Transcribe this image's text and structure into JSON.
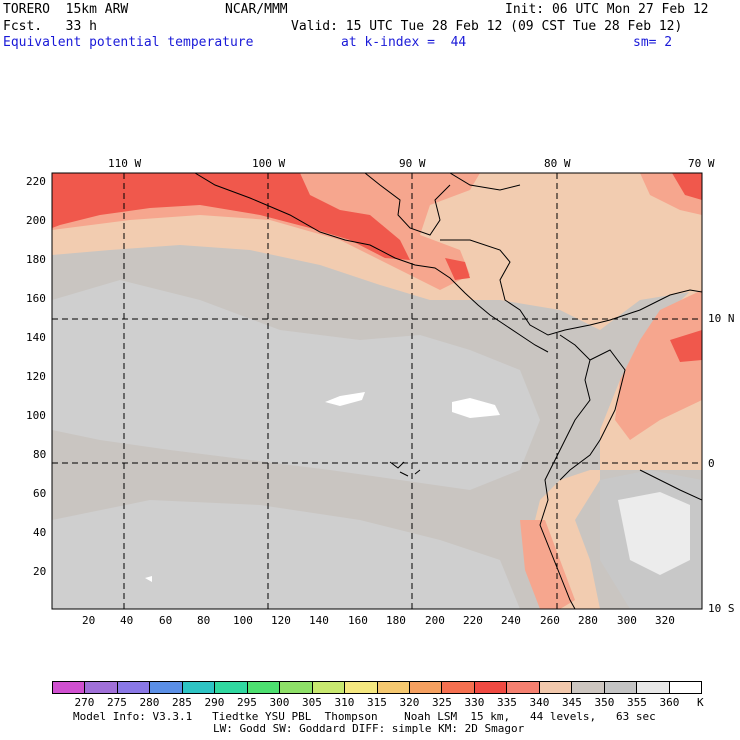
{
  "header": {
    "model": "TORERO  15km ARW",
    "org": "NCAR/MMM",
    "init": "Init: 06 UTC Mon 27 Feb 12",
    "fcst": "Fcst.   33 h",
    "valid": "Valid: 15 UTC Tue 28 Feb 12 (09 CST Tue 28 Feb 12)",
    "field": "Equivalent potential temperature",
    "level": "at k-index =  44",
    "smoothing": "sm= 2",
    "field_color": "#1a1ad8"
  },
  "map": {
    "longitude_labels": [
      "110 W",
      "100 W",
      "90 W",
      "80 W",
      "70 W"
    ],
    "latitude_labels": [
      "10 N",
      "0",
      "10 S"
    ],
    "grid_y_labels": [
      "220",
      "200",
      "180",
      "160",
      "140",
      "120",
      "100",
      "80",
      "60",
      "40",
      "20"
    ],
    "grid_x_labels": [
      "20",
      "40",
      "60",
      "80",
      "100",
      "120",
      "140",
      "160",
      "180",
      "200",
      "220",
      "240",
      "260",
      "280",
      "300",
      "320"
    ],
    "colors": {
      "background_field": "#c9c5c1",
      "cool_field": "#cfcfcf",
      "warm_field": "#f2ccb0",
      "hot_field": "#f6a68e",
      "hottest_field": "#f0584c",
      "coastline": "#000000"
    }
  },
  "colorbar": {
    "unit": "K",
    "ticks": [
      "270",
      "275",
      "280",
      "285",
      "290",
      "295",
      "300",
      "305",
      "310",
      "315",
      "320",
      "325",
      "330",
      "335",
      "340",
      "345",
      "350",
      "355",
      "360"
    ],
    "colors": [
      "#d050d0",
      "#a070d8",
      "#8a78e6",
      "#5b8fe6",
      "#2ec4c4",
      "#30d8a0",
      "#4de070",
      "#8ee068",
      "#c8e870",
      "#f5e880",
      "#f5c870",
      "#f5a060",
      "#f57050",
      "#f04a42",
      "#f58070",
      "#f2c8ac",
      "#cdc6c0",
      "#c4c4c4",
      "#e8e8e8",
      "#ffffff"
    ]
  },
  "footer": {
    "line1": "Model Info: V3.3.1   Tiedtke YSU PBL  Thompson    Noah LSM  15 km,   44 levels,   63 sec",
    "line2": "LW: Godd SW: Goddard DIFF: simple KM: 2D Smagor"
  }
}
